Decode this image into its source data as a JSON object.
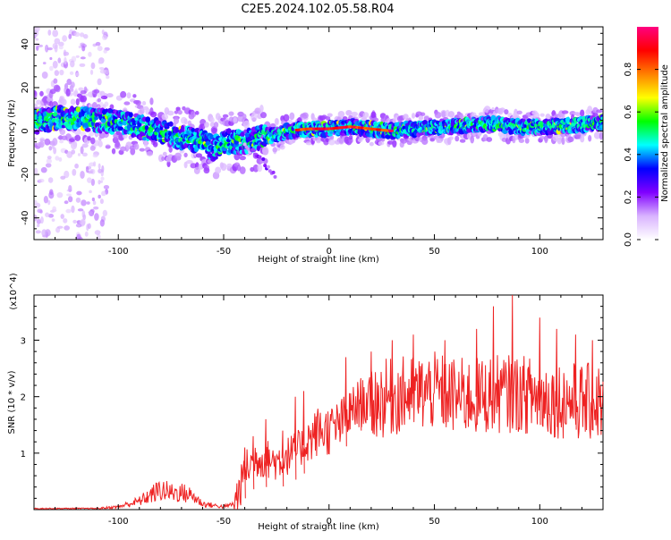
{
  "title": "C2E5.2024.102.05.58.R04",
  "chart_data": [
    {
      "type": "heatmap",
      "name": "spectrogram",
      "xlabel": "Height of straight line (km)",
      "ylabel": "Frequency (Hz)",
      "xlim": [
        -140,
        130
      ],
      "ylim": [
        -50,
        48
      ],
      "xticks": [
        -100,
        -50,
        0,
        50,
        100
      ],
      "yticks": [
        -40,
        -20,
        0,
        20,
        40
      ],
      "colorbar": {
        "label": "Normalized spectral amplitude",
        "range": [
          0,
          1
        ],
        "ticks": [
          "0.0",
          "0.2",
          "0.4",
          "0.6",
          "0.8"
        ],
        "colors": [
          "#ffffff",
          "#d9b3ff",
          "#8000ff",
          "#0000ff",
          "#00ffff",
          "#00ff00",
          "#ffff00",
          "#ff8000",
          "#ff0000",
          "#ff0080"
        ]
      },
      "ridge": {
        "x": [
          -140,
          -130,
          -120,
          -110,
          -100,
          -90,
          -80,
          -70,
          -60,
          -55,
          -50,
          -45,
          -40,
          -35,
          -30,
          -25,
          -20,
          -10,
          0,
          10,
          20,
          30,
          40,
          50,
          60,
          70,
          80,
          90,
          100,
          110,
          120,
          130
        ],
        "y": [
          4,
          6,
          6,
          5,
          4,
          2,
          0,
          -3,
          -5,
          -8,
          -5,
          -5,
          -5,
          -4,
          -2,
          -2,
          0,
          1,
          1,
          2,
          1,
          0,
          1,
          2,
          2,
          3,
          3,
          2,
          2,
          2,
          3,
          4
        ]
      },
      "peak_band": {
        "x_range": [
          -15,
          30
        ],
        "y": 1
      }
    },
    {
      "type": "line",
      "name": "snr",
      "xlabel": "Height of straight line (km)",
      "ylabel": "SNR (10 * v/v)",
      "yscale_label": "(x10^4)",
      "xlim": [
        -140,
        130
      ],
      "ylim": [
        0,
        3.8
      ],
      "xticks": [
        -100,
        -50,
        0,
        50,
        100
      ],
      "yticks": [
        1,
        2,
        3
      ],
      "color": "#ee2222",
      "envelope": {
        "x": [
          -140,
          -110,
          -100,
          -90,
          -85,
          -80,
          -75,
          -70,
          -65,
          -60,
          -50,
          -45,
          -42,
          -40,
          -35,
          -30,
          -25,
          -20,
          -15,
          -10,
          -5,
          0,
          5,
          10,
          15,
          20,
          30,
          40,
          50,
          60,
          70,
          80,
          90,
          100,
          110,
          120,
          130
        ],
        "y": [
          0.02,
          0.02,
          0.05,
          0.15,
          0.25,
          0.35,
          0.3,
          0.3,
          0.25,
          0.1,
          0.05,
          0.1,
          0.4,
          0.7,
          0.9,
          0.9,
          0.85,
          0.95,
          1.05,
          1.2,
          1.4,
          1.4,
          1.5,
          1.7,
          1.9,
          1.9,
          2.0,
          2.05,
          2.1,
          2.0,
          2.0,
          2.05,
          2.05,
          2.0,
          1.95,
          1.9,
          1.9
        ]
      },
      "spikes": [
        {
          "x": -40,
          "y": 1.1
        },
        {
          "x": -36,
          "y": 1.3
        },
        {
          "x": -30,
          "y": 1.6
        },
        {
          "x": -22,
          "y": 1.4
        },
        {
          "x": -16,
          "y": 2.0
        },
        {
          "x": -12,
          "y": 2.1
        },
        {
          "x": 8,
          "y": 2.7
        },
        {
          "x": 15,
          "y": 2.3
        },
        {
          "x": 20,
          "y": 2.8
        },
        {
          "x": 30,
          "y": 3.0
        },
        {
          "x": 40,
          "y": 3.1
        },
        {
          "x": 55,
          "y": 3.0
        },
        {
          "x": 70,
          "y": 3.2
        },
        {
          "x": 78,
          "y": 3.6
        },
        {
          "x": 87,
          "y": 3.8
        },
        {
          "x": 100,
          "y": 3.4
        },
        {
          "x": 108,
          "y": 3.2
        },
        {
          "x": 117,
          "y": 3.1
        },
        {
          "x": 125,
          "y": 3.0
        }
      ]
    }
  ]
}
